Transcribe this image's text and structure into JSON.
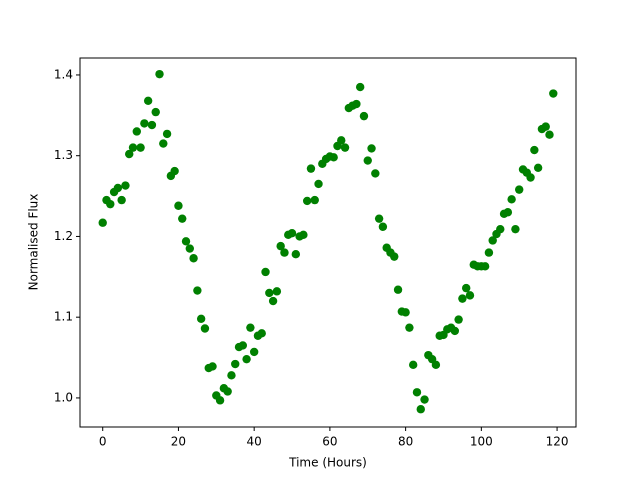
{
  "chart_data": {
    "type": "scatter",
    "xlabel": "Time (Hours)",
    "ylabel": "Normalised Flux",
    "color": "#008000",
    "x": [
      0,
      1,
      2,
      3,
      4,
      5,
      6,
      7,
      8,
      9,
      10,
      11,
      12,
      13,
      14,
      15,
      16,
      17,
      18,
      19,
      20,
      21,
      22,
      23,
      24,
      25,
      26,
      27,
      28,
      29,
      30,
      31,
      32,
      33,
      34,
      35,
      36,
      37,
      38,
      39,
      40,
      41,
      42,
      43,
      44,
      45,
      46,
      47,
      48,
      49,
      50,
      51,
      52,
      53,
      54,
      55,
      56,
      57,
      58,
      59,
      60,
      61,
      62,
      63,
      64,
      65,
      66,
      67,
      68,
      69,
      70,
      71,
      72,
      73,
      74,
      75,
      76,
      77,
      78,
      79,
      80,
      81,
      82,
      83,
      84,
      85,
      86,
      87,
      88,
      89,
      90,
      91,
      92,
      93,
      94,
      95,
      96,
      97,
      98,
      99,
      100,
      101,
      102,
      103,
      104,
      105,
      106,
      107,
      108,
      109,
      110,
      111,
      112,
      113,
      114,
      115,
      116,
      117,
      118,
      119
    ],
    "values": [
      1.217,
      1.245,
      1.24,
      1.255,
      1.26,
      1.245,
      1.263,
      1.302,
      1.31,
      1.33,
      1.31,
      1.34,
      1.368,
      1.338,
      1.354,
      1.401,
      1.315,
      1.327,
      1.275,
      1.281,
      1.238,
      1.222,
      1.194,
      1.185,
      1.173,
      1.133,
      1.098,
      1.086,
      1.037,
      1.039,
      1.003,
      0.997,
      1.012,
      1.008,
      1.028,
      1.042,
      1.063,
      1.065,
      1.048,
      1.087,
      1.057,
      1.077,
      1.08,
      1.156,
      1.13,
      1.12,
      1.132,
      1.188,
      1.18,
      1.202,
      1.204,
      1.178,
      1.2,
      1.202,
      1.244,
      1.284,
      1.245,
      1.265,
      1.29,
      1.296,
      1.299,
      1.298,
      1.312,
      1.319,
      1.31,
      1.359,
      1.362,
      1.364,
      1.385,
      1.349,
      1.294,
      1.309,
      1.278,
      1.222,
      1.212,
      1.186,
      1.18,
      1.175,
      1.134,
      1.107,
      1.106,
      1.087,
      1.041,
      1.007,
      0.986,
      0.998,
      1.053,
      1.048,
      1.041,
      1.077,
      1.078,
      1.085,
      1.087,
      1.083,
      1.097,
      1.123,
      1.136,
      1.127,
      1.165,
      1.163,
      1.163,
      1.163,
      1.18,
      1.195,
      1.203,
      1.209,
      1.228,
      1.23,
      1.246,
      1.209,
      1.258,
      1.283,
      1.279,
      1.273,
      1.307,
      1.285,
      1.333,
      1.336,
      1.326,
      1.377
    ],
    "xlim": [
      -6,
      125
    ],
    "ylim": [
      0.964,
      1.421
    ],
    "xticks": [
      0,
      20,
      40,
      60,
      80,
      100,
      120
    ],
    "yticks": [
      {
        "value": 1,
        "label": "1.0"
      },
      1.1,
      1.2,
      1.3,
      1.4
    ]
  }
}
